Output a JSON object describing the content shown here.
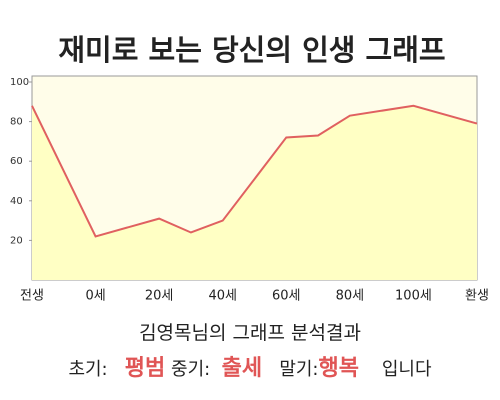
{
  "chart_data": {
    "type": "area",
    "title": "재미로 보는 당신의 인생 그래프",
    "categories": [
      "전생",
      "0세",
      "20세",
      null,
      "40세",
      "60세",
      null,
      "80세",
      "100세",
      "환생"
    ],
    "values": [
      88,
      22,
      31,
      24,
      30,
      72,
      73,
      83,
      88,
      79
    ],
    "color": "#e06060",
    "fill": "#ffffc4",
    "ylim": [
      0,
      100
    ],
    "yticks": [
      20,
      40,
      60,
      80,
      100
    ],
    "grid": false
  },
  "summary": {
    "heading": "김영목님의 그래프 분석결과",
    "early_label": "초기:",
    "early": "평범",
    "middle_label": "중기:",
    "middle": "출세",
    "late_label": "말기:",
    "late": "행복",
    "ending": "입니다"
  }
}
